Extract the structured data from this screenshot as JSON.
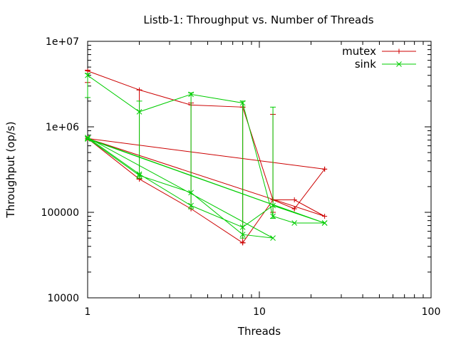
{
  "chart_data": {
    "type": "line",
    "title": "Listb-1: Throughput vs. Number of Threads",
    "xlabel": "Threads",
    "ylabel": "Throughput (op/s)",
    "x_scale": "log",
    "y_scale": "log",
    "xlim": [
      1,
      100
    ],
    "ylim": [
      10000,
      10000000
    ],
    "x_ticks": [
      1,
      10,
      100
    ],
    "x_tick_labels": [
      "1",
      "10",
      "100"
    ],
    "y_ticks": [
      10000,
      100000,
      1000000,
      10000000
    ],
    "y_tick_labels": [
      "10000",
      "100000",
      "1e+06",
      "1e+07"
    ],
    "grid": false,
    "legend_position": "top-right",
    "series": [
      {
        "name": "mutex",
        "color": "#cc0000",
        "marker": "plus",
        "points": [
          [
            1,
            4500000
          ],
          [
            2,
            2700000
          ],
          [
            4,
            1800000
          ],
          [
            8,
            1700000
          ],
          [
            12,
            140000
          ],
          [
            16,
            140000
          ],
          [
            24,
            90000
          ],
          [
            1,
            730000
          ],
          [
            2,
            245000
          ],
          [
            4,
            110000
          ],
          [
            8,
            44000
          ],
          [
            12,
            140000
          ],
          [
            16,
            110000
          ],
          [
            24,
            320000
          ],
          [
            1,
            730000
          ],
          [
            2,
            245000
          ],
          [
            4,
            110000
          ],
          [
            8,
            44000
          ],
          [
            12,
            140000
          ],
          [
            16,
            110000
          ],
          [
            24,
            320000
          ],
          [
            1,
            730000
          ]
        ],
        "error_bars": [
          {
            "x": 1,
            "low": 3300000,
            "high": 4600000
          },
          {
            "x": 2,
            "low": 245000,
            "high": 2700000
          },
          {
            "x": 4,
            "low": 110000,
            "high": 1900000
          },
          {
            "x": 8,
            "low": 44000,
            "high": 1700000
          },
          {
            "x": 12,
            "low": 100000,
            "high": 1400000
          }
        ]
      },
      {
        "name": "sink",
        "color": "#00cc00",
        "marker": "cross",
        "points": [
          [
            1,
            4000000
          ],
          [
            2,
            1500000
          ],
          [
            4,
            2400000
          ],
          [
            8,
            1900000
          ],
          [
            12,
            90000
          ],
          [
            16,
            75000
          ],
          [
            24,
            75000
          ],
          [
            1,
            730000
          ],
          [
            2,
            270000
          ],
          [
            4,
            170000
          ],
          [
            8,
            55000
          ],
          [
            12,
            50000
          ],
          [
            1,
            750000
          ],
          [
            2,
            280000
          ],
          [
            4,
            120000
          ],
          [
            8,
            67000
          ],
          [
            12,
            120000
          ],
          [
            24,
            75000
          ],
          [
            1,
            720000
          ]
        ],
        "error_bars": [
          {
            "x": 1,
            "low": 2200000,
            "high": 4200000
          },
          {
            "x": 2,
            "low": 250000,
            "high": 2000000
          },
          {
            "x": 4,
            "low": 110000,
            "high": 2500000
          },
          {
            "x": 8,
            "low": 50000,
            "high": 2000000
          },
          {
            "x": 12,
            "low": 85000,
            "high": 1700000
          }
        ]
      }
    ]
  }
}
